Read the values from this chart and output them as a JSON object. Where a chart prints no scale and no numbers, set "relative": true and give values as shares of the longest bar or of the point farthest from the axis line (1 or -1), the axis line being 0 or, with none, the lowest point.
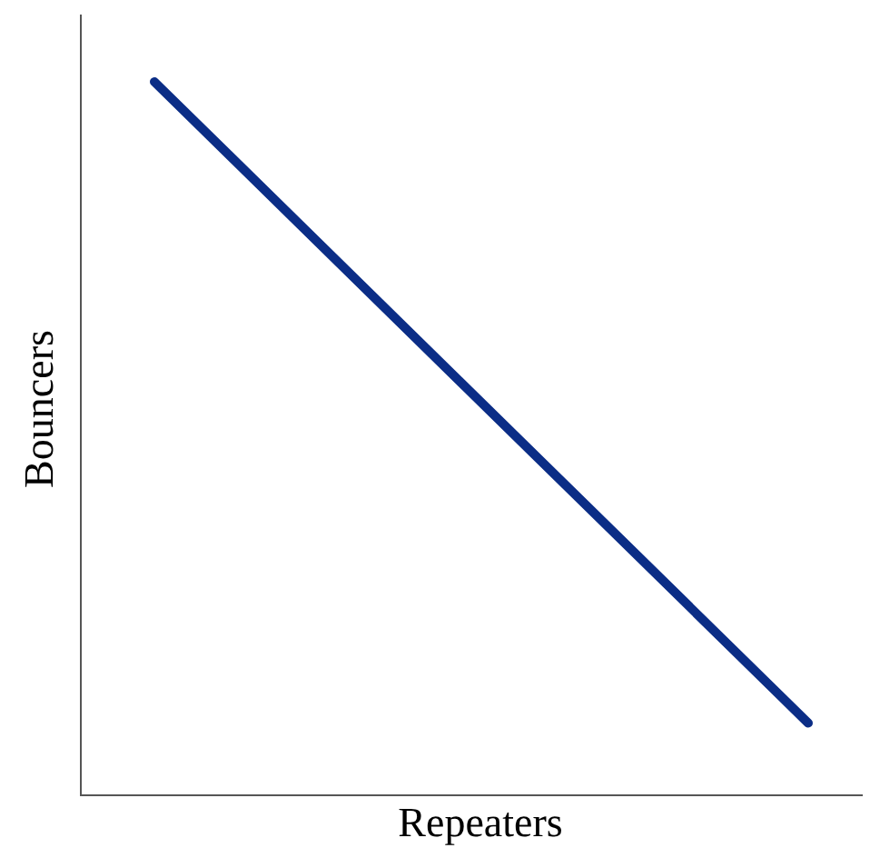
{
  "chart_data": {
    "type": "line",
    "relative": true,
    "xlabel": "Repeaters",
    "ylabel": "Bouncers",
    "categories": [
      null,
      null
    ],
    "series": [
      {
        "color": "#0b2d86",
        "values": [
          1,
          0.1
        ]
      }
    ]
  }
}
